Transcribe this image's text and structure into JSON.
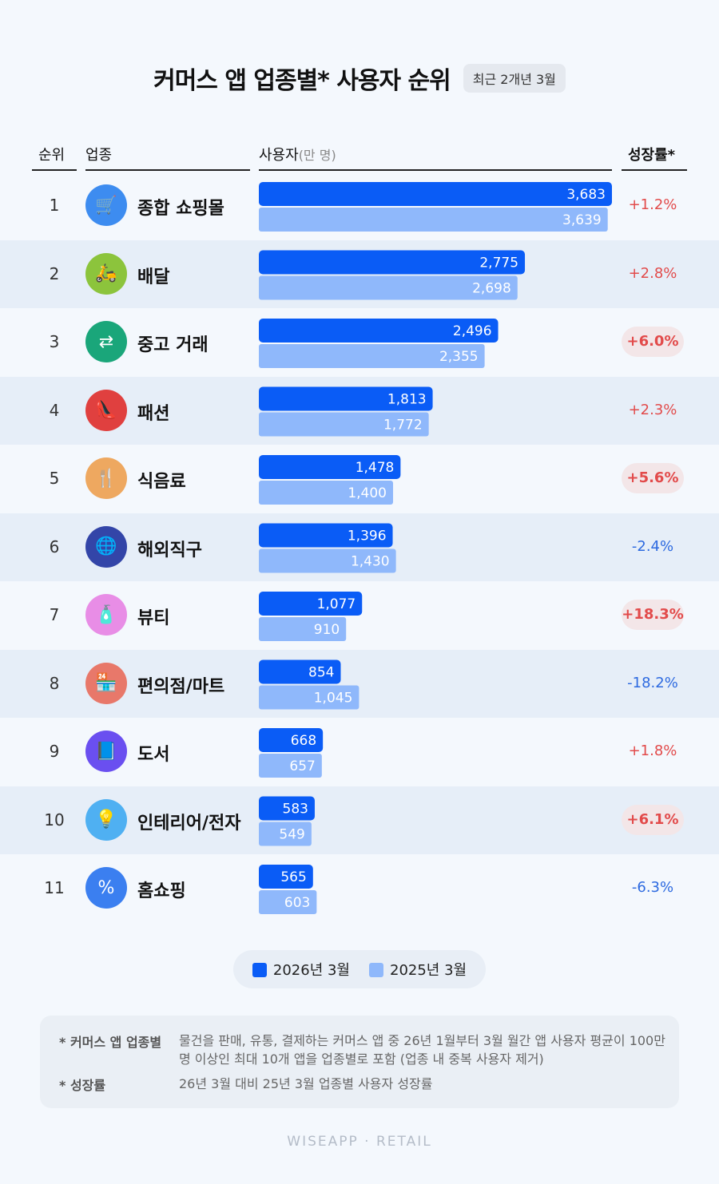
{
  "header": {
    "title": "커머스 앱 업종별* 사용자 순위",
    "period": "최근 2개년 3월",
    "col_rank": "순위",
    "col_category": "업종",
    "col_users": "사용자",
    "col_users_unit": "(만 명)",
    "col_growth": "성장률*"
  },
  "colors": {
    "bar_2026": "#0a5cf6",
    "bar_2025": "#8fb8fb",
    "growth_up": "#e24b4b",
    "growth_down": "#2d6ae0",
    "band": "#e6eef8"
  },
  "chart_data": {
    "type": "bar",
    "orientation": "horizontal",
    "categories": [
      "종합 쇼핑몰",
      "배달",
      "중고 거래",
      "패션",
      "식음료",
      "해외직구",
      "뷰티",
      "편의점/마트",
      "도서",
      "인테리어/전자",
      "홈쇼핑"
    ],
    "series": [
      {
        "name": "2026년 3월",
        "values": [
          3683,
          2775,
          2496,
          1813,
          1478,
          1396,
          1077,
          854,
          668,
          583,
          565
        ]
      },
      {
        "name": "2025년 3월",
        "values": [
          3639,
          2698,
          2355,
          1772,
          1400,
          1430,
          910,
          1045,
          657,
          549,
          603
        ]
      }
    ],
    "legend_position": "bottom"
  },
  "rows": [
    {
      "rank": "1",
      "label": "종합 쇼핑몰",
      "icon": "cart-icon",
      "icon_color": "#3d8cf0",
      "glyph": "🛒",
      "v26": "3,683",
      "v25": "3,639",
      "growth": "+1.2%",
      "dir": "up",
      "highlight": false
    },
    {
      "rank": "2",
      "label": "배달",
      "icon": "delivery-scooter-icon",
      "icon_color": "#8cc43c",
      "glyph": "🛵",
      "v26": "2,775",
      "v25": "2,698",
      "growth": "+2.8%",
      "dir": "up",
      "highlight": false
    },
    {
      "rank": "3",
      "label": "중고 거래",
      "icon": "exchange-arrows-icon",
      "icon_color": "#1aa67a",
      "glyph": "⇄",
      "v26": "2,496",
      "v25": "2,355",
      "growth": "+6.0%",
      "dir": "up",
      "highlight": true
    },
    {
      "rank": "4",
      "label": "패션",
      "icon": "high-heel-icon",
      "icon_color": "#e0403f",
      "glyph": "👠",
      "v26": "1,813",
      "v25": "1,772",
      "growth": "+2.3%",
      "dir": "up",
      "highlight": false
    },
    {
      "rank": "5",
      "label": "식음료",
      "icon": "fork-spoon-icon",
      "icon_color": "#eea860",
      "glyph": "🍴",
      "v26": "1,478",
      "v25": "1,400",
      "growth": "+5.6%",
      "dir": "up",
      "highlight": true
    },
    {
      "rank": "6",
      "label": "해외직구",
      "icon": "globe-icon",
      "icon_color": "#3345a8",
      "glyph": "🌐",
      "v26": "1,396",
      "v25": "1,430",
      "growth": "-2.4%",
      "dir": "down",
      "highlight": false
    },
    {
      "rank": "7",
      "label": "뷰티",
      "icon": "perfume-icon",
      "icon_color": "#e88de6",
      "glyph": "🧴",
      "v26": "1,077",
      "v25": "910",
      "growth": "+18.3%",
      "dir": "up",
      "highlight": true
    },
    {
      "rank": "8",
      "label": "편의점/마트",
      "icon": "store-24-icon",
      "icon_color": "#e8786a",
      "glyph": "🏪",
      "v26": "854",
      "v25": "1,045",
      "growth": "-18.2%",
      "dir": "down",
      "highlight": false
    },
    {
      "rank": "9",
      "label": "도서",
      "icon": "book-icon",
      "icon_color": "#6a4ff0",
      "glyph": "📘",
      "v26": "668",
      "v25": "657",
      "growth": "+1.8%",
      "dir": "up",
      "highlight": false
    },
    {
      "rank": "10",
      "label": "인테리어/전자",
      "icon": "lamp-icon",
      "icon_color": "#4fb0f2",
      "glyph": "💡",
      "v26": "583",
      "v25": "549",
      "growth": "+6.1%",
      "dir": "up",
      "highlight": true
    },
    {
      "rank": "11",
      "label": "홈쇼핑",
      "icon": "discount-badge-icon",
      "icon_color": "#3b7ff0",
      "glyph": "%",
      "v26": "565",
      "v25": "603",
      "growth": "-6.3%",
      "dir": "down",
      "highlight": false
    }
  ],
  "legend": {
    "y2026": "2026년 3월",
    "y2025": "2025년 3월"
  },
  "notes": {
    "n1_key": "* 커머스 앱 업종별",
    "n1_val": "물건을 판매, 유통, 결제하는 커머스 앱 중 26년 1월부터 3월 월간 앱 사용자 평균이 100만 명 이상인 최대 10개 앱을 업종별로 포함 (업종 내 중복 사용자 제거)",
    "n2_key": "* 성장률",
    "n2_val": "26년 3월 대비 25년 3월 업종별 사용자 성장률"
  },
  "brand": "WISEAPP · RETAIL"
}
